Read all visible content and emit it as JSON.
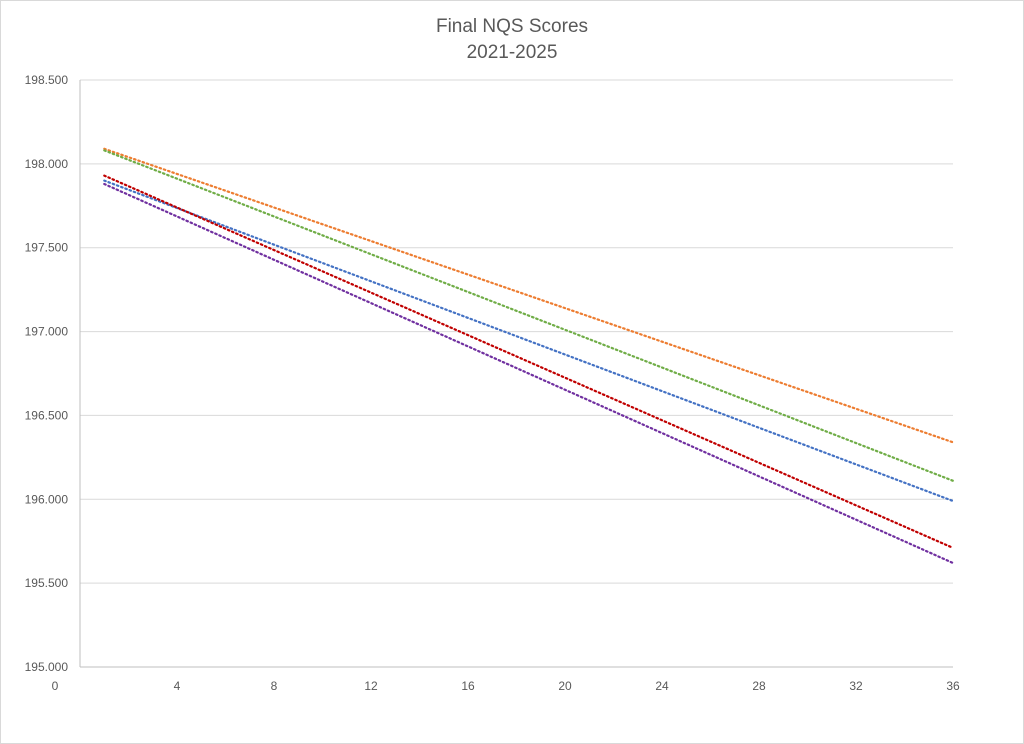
{
  "chart_data": {
    "type": "line",
    "title": "Final NQS Scores",
    "subtitle": "2021-2025",
    "xlabel": "",
    "ylabel": "",
    "xlim": [
      0,
      36
    ],
    "ylim": [
      195.0,
      198.5
    ],
    "xticks": [
      0,
      4,
      8,
      12,
      16,
      20,
      24,
      28,
      32,
      36
    ],
    "xtick_labels": [
      "0",
      "4",
      "8",
      "12",
      "16",
      "20",
      "24",
      "28",
      "32",
      "36"
    ],
    "yticks": [
      195.0,
      195.5,
      196.0,
      196.5,
      197.0,
      197.5,
      198.0,
      198.5
    ],
    "ytick_labels": [
      "195.000",
      "195.500",
      "196.000",
      "196.500",
      "197.000",
      "197.500",
      "198.000",
      "198.500"
    ],
    "grid": "horizontal",
    "legend": "none",
    "line_style": "dotted",
    "series": [
      {
        "color": "#ed7d31",
        "x": [
          1,
          36
        ],
        "values": [
          198.09,
          196.34
        ]
      },
      {
        "color": "#70ad47",
        "x": [
          1,
          36
        ],
        "values": [
          198.08,
          196.11
        ]
      },
      {
        "color": "#4472c4",
        "x": [
          1,
          36
        ],
        "values": [
          197.9,
          195.99
        ]
      },
      {
        "color": "#c00000",
        "x": [
          1,
          36
        ],
        "values": [
          197.93,
          195.71
        ]
      },
      {
        "color": "#7030a0",
        "x": [
          1,
          36
        ],
        "values": [
          197.88,
          195.62
        ]
      }
    ]
  }
}
